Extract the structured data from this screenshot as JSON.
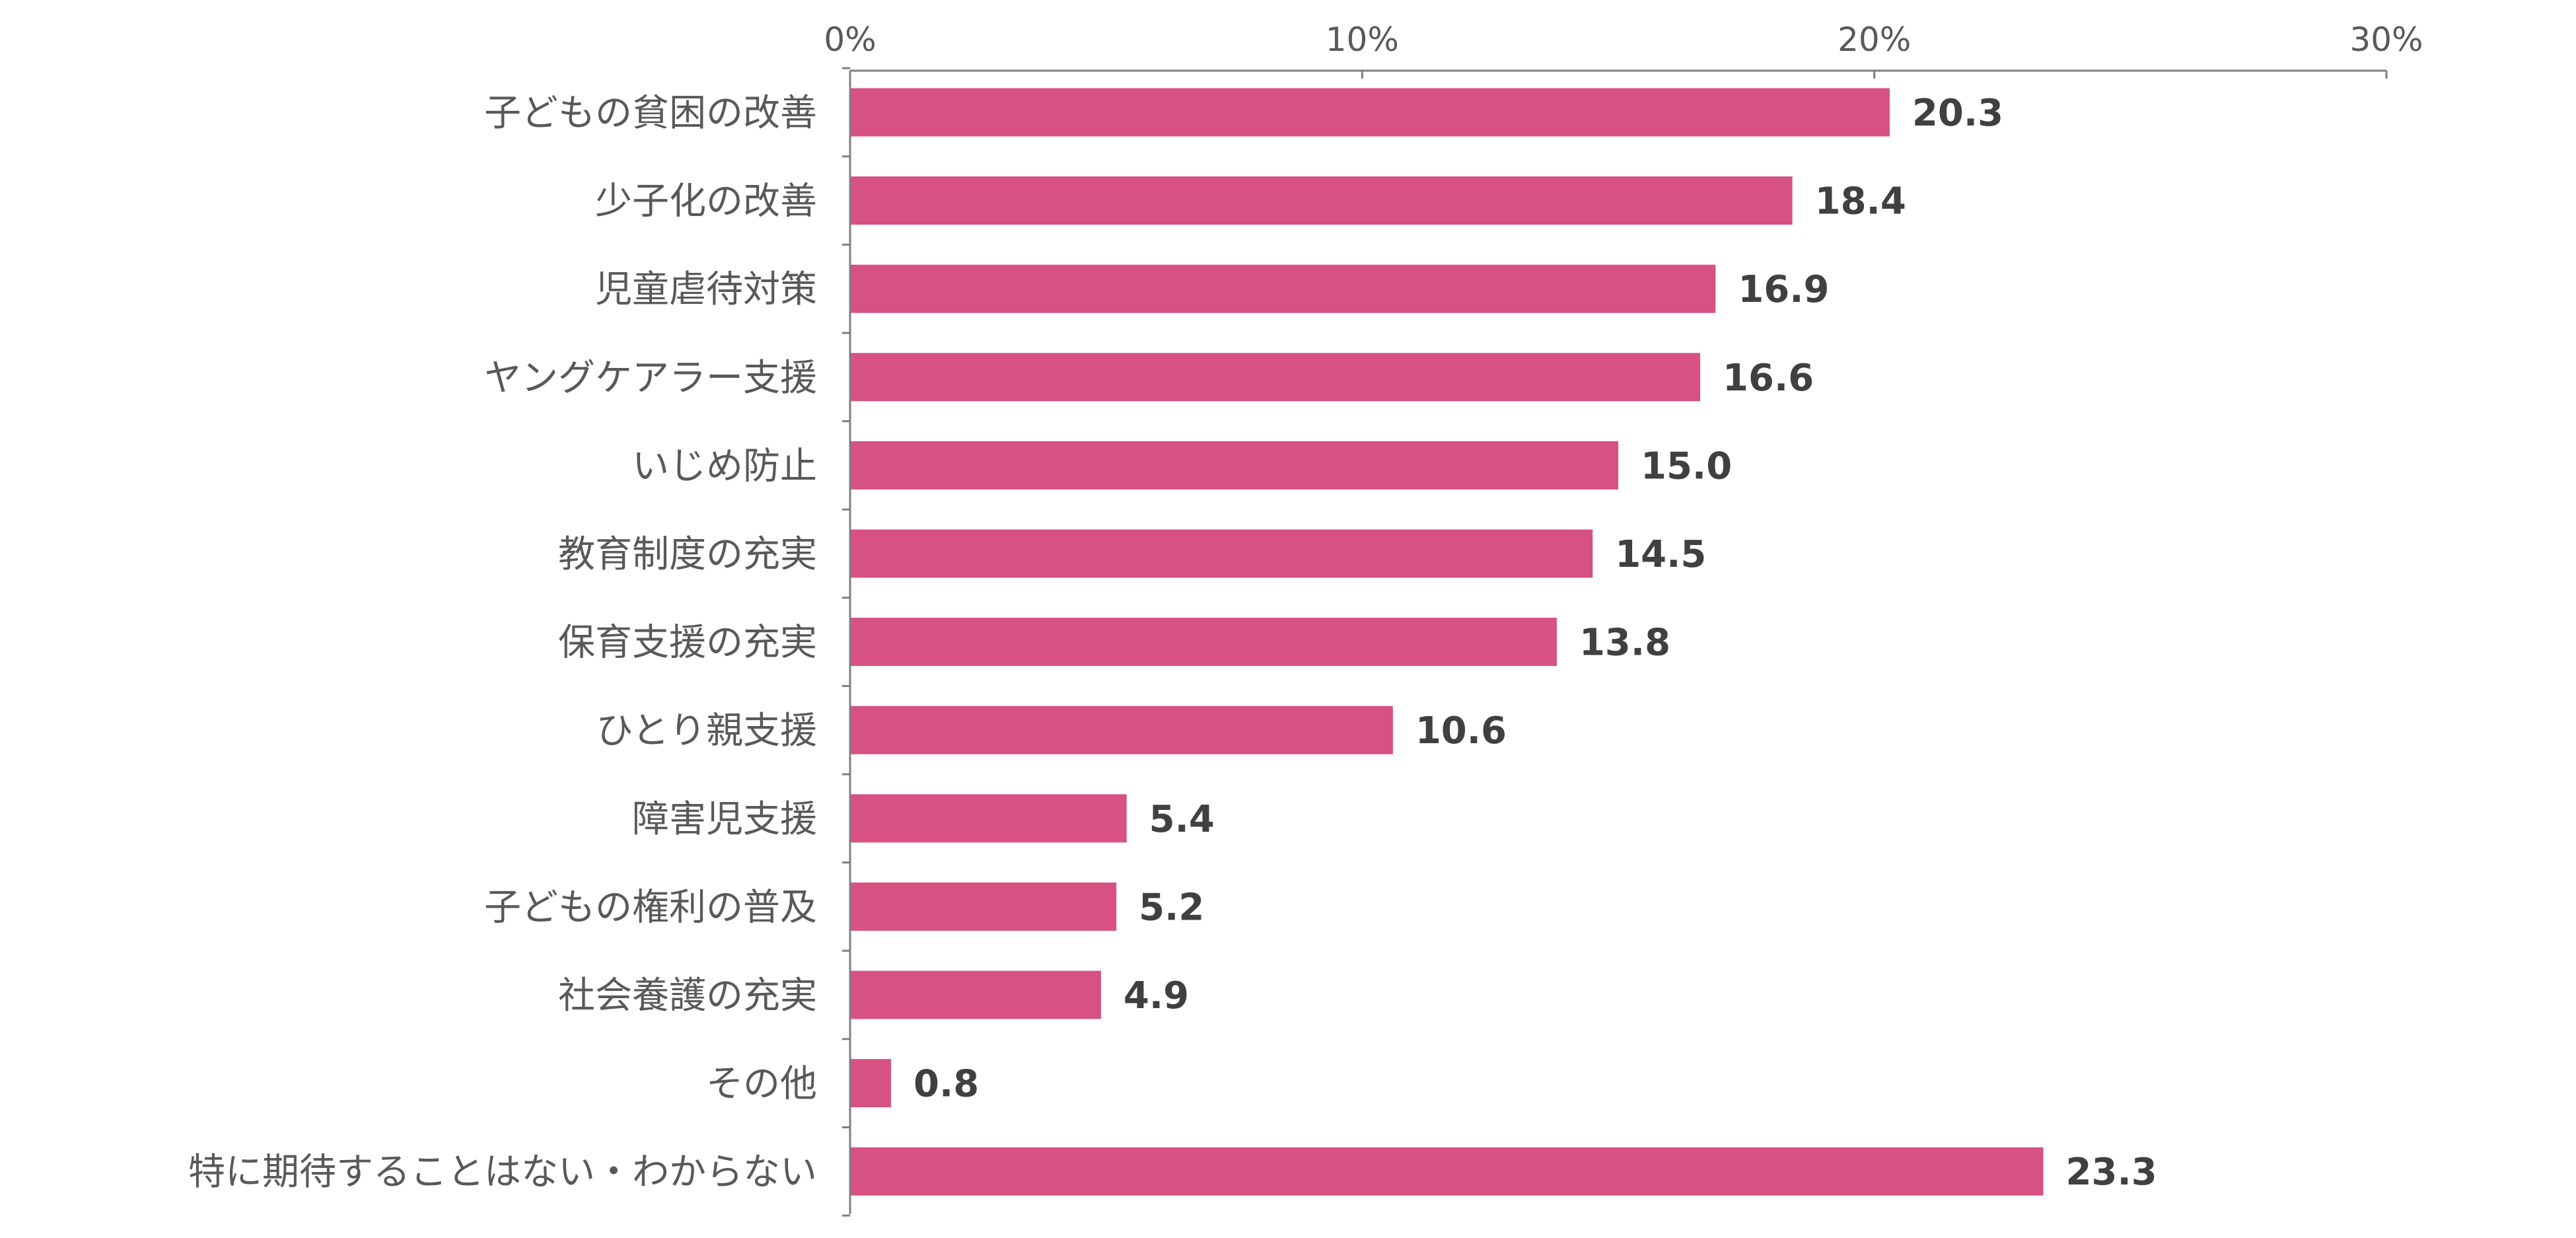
{
  "chart_data": {
    "type": "bar",
    "orientation": "horizontal",
    "title": "",
    "xlabel": "",
    "ylabel": "",
    "xlim": [
      0,
      30
    ],
    "x_ticks": [
      0,
      10,
      20,
      30
    ],
    "x_tick_labels": [
      "0%",
      "10%",
      "20%",
      "30%"
    ],
    "x_axis_position": "top",
    "grid": false,
    "legend": "none",
    "categories": [
      "子どもの貧困の改善",
      "少子化の改善",
      "児童虐待対策",
      "ヤングケアラー支援",
      "いじめ防止",
      "教育制度の充実",
      "保育支援の充実",
      "ひとり親支援",
      "障害児支援",
      "子どもの権利の普及",
      "社会養護の充実",
      "その他",
      "特に期待することはない・わからない"
    ],
    "values": [
      20.3,
      18.4,
      16.9,
      16.6,
      15.0,
      14.5,
      13.8,
      10.6,
      5.4,
      5.2,
      4.9,
      0.8,
      23.3
    ],
    "value_labels": [
      "20.3",
      "18.4",
      "16.9",
      "16.6",
      "15.0",
      "14.5",
      "13.8",
      "10.6",
      "5.4",
      "5.2",
      "4.9",
      "0.8",
      "23.3"
    ],
    "colors": {
      "bar": "#d75183",
      "axis": "#7f7f7f",
      "tick_label": "#595959",
      "value_label": "#404040"
    }
  }
}
